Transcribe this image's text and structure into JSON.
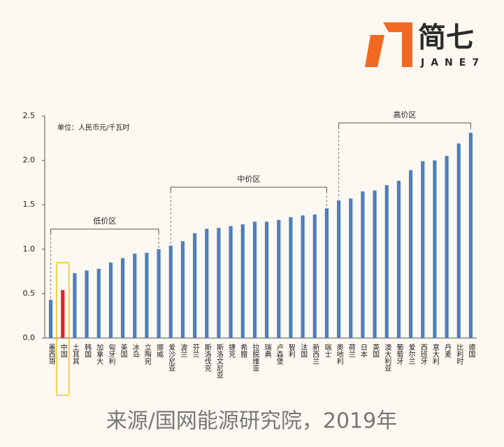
{
  "chart_data": {
    "type": "bar",
    "logo": {
      "name": "简七",
      "subname": "JANE7"
    },
    "unit_label": "单位：人民币元/千瓦时",
    "zones": [
      "低价区",
      "中价区",
      "高价区"
    ],
    "source": "来源/国网能源研究院，2019年",
    "categories": [
      "墨西哥",
      "中国",
      "土耳其",
      "韩国",
      "加拿大",
      "匈牙利",
      "美国",
      "冰岛",
      "立陶宛",
      "挪威",
      "爱沙尼亚",
      "波兰",
      "芬兰",
      "斯洛伐克",
      "斯洛文尼亚",
      "捷克",
      "希腊",
      "拉脱维亚",
      "瑞典",
      "卢森堡",
      "智利",
      "法国",
      "新西兰",
      "瑞士",
      "奥地利",
      "荷兰",
      "日本",
      "英国",
      "澳大利亚",
      "葡萄牙",
      "爱尔兰",
      "西班牙",
      "意大利",
      "丹麦",
      "比利时",
      "德国"
    ],
    "values": [
      0.43,
      0.54,
      0.73,
      0.76,
      0.78,
      0.85,
      0.9,
      0.95,
      0.96,
      1.0,
      1.04,
      1.09,
      1.18,
      1.23,
      1.24,
      1.26,
      1.28,
      1.31,
      1.31,
      1.33,
      1.36,
      1.38,
      1.39,
      1.46,
      1.55,
      1.57,
      1.65,
      1.66,
      1.72,
      1.77,
      1.89,
      1.99,
      2.0,
      2.05,
      2.19,
      2.31
    ],
    "color": "#4a7fc1",
    "highlight": {
      "index": 1,
      "color": "#e52222",
      "box_color": "#f2c12e"
    },
    "ylim": [
      0,
      2.5
    ],
    "yticks": [
      {
        "value": 0,
        "label": "0.0"
      },
      0.5,
      {
        "value": 1,
        "label": "1.0"
      },
      1.5,
      {
        "value": 2,
        "label": "2.0"
      },
      2.5
    ]
  }
}
